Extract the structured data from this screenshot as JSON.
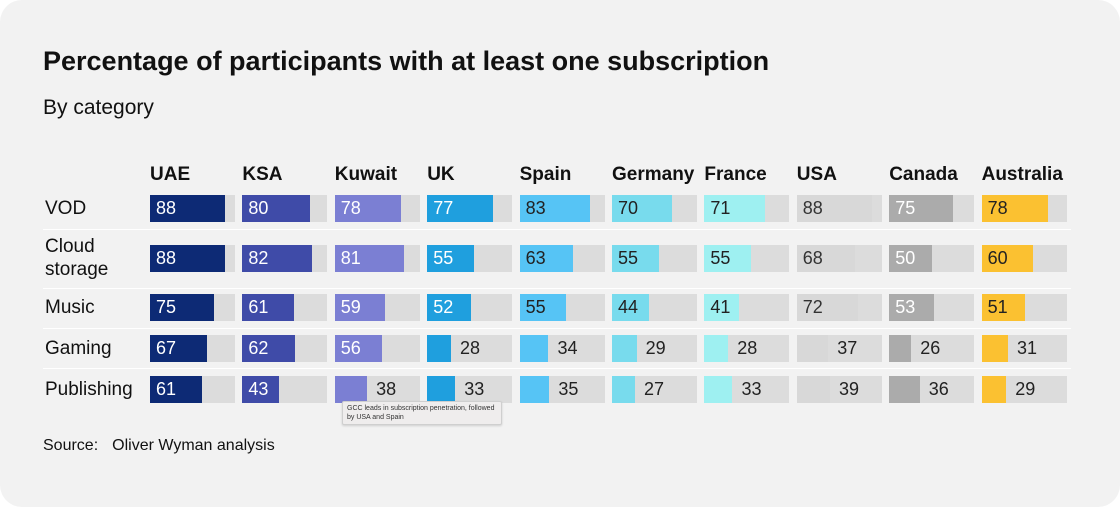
{
  "title": "Percentage of participants with at least one subscription",
  "subtitle": "By category",
  "source_label": "Source:",
  "source_text": "Oliver Wyman analysis",
  "tooltip": "GCC leads in subscription penetration, followed by USA and Spain",
  "chart_data": {
    "type": "table",
    "title": "Percentage of participants with at least one subscription",
    "subtitle": "By category",
    "countries": [
      "UAE",
      "KSA",
      "Kuwait",
      "UK",
      "Spain",
      "Germany",
      "France",
      "USA",
      "Canada",
      "Australia"
    ],
    "colors": [
      "#0d2a75",
      "#3f4ba8",
      "#7b7fd3",
      "#1f9fde",
      "#56c4f5",
      "#78dbed",
      "#9ef0f1",
      "#d8d8d8",
      "#ababab",
      "#fbc131"
    ],
    "text_colors": [
      "#ffffff",
      "#ffffff",
      "#ffffff",
      "#ffffff",
      "#222222",
      "#222222",
      "#222222",
      "#333333",
      "#ffffff",
      "#222222"
    ],
    "track_color": "#dcdcdc",
    "max": 100,
    "rows": [
      {
        "category": "VOD",
        "values": [
          88,
          80,
          78,
          77,
          83,
          70,
          71,
          88,
          75,
          78
        ]
      },
      {
        "category": "Cloud\nstorage",
        "values": [
          88,
          82,
          81,
          55,
          63,
          55,
          55,
          68,
          50,
          60
        ]
      },
      {
        "category": "Music",
        "values": [
          75,
          61,
          59,
          52,
          55,
          44,
          41,
          72,
          53,
          51
        ]
      },
      {
        "category": "Gaming",
        "values": [
          67,
          62,
          56,
          28,
          34,
          29,
          28,
          37,
          26,
          31
        ]
      },
      {
        "category": "Publishing",
        "values": [
          61,
          43,
          38,
          33,
          35,
          27,
          33,
          39,
          36,
          29
        ]
      }
    ]
  }
}
